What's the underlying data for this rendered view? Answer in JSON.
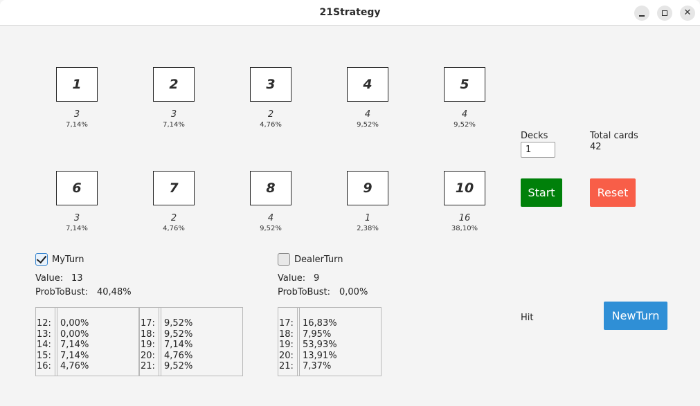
{
  "window": {
    "title": "21Strategy",
    "controls": {
      "minimize": "minimize-icon",
      "maximize": "maximize-icon",
      "close": "close-icon"
    }
  },
  "cards": [
    {
      "label": "1",
      "count": "3",
      "pct": "7,14%"
    },
    {
      "label": "2",
      "count": "3",
      "pct": "7,14%"
    },
    {
      "label": "3",
      "count": "2",
      "pct": "4,76%"
    },
    {
      "label": "4",
      "count": "4",
      "pct": "9,52%"
    },
    {
      "label": "5",
      "count": "4",
      "pct": "9,52%"
    },
    {
      "label": "6",
      "count": "3",
      "pct": "7,14%"
    },
    {
      "label": "7",
      "count": "2",
      "pct": "4,76%"
    },
    {
      "label": "8",
      "count": "4",
      "pct": "9,52%"
    },
    {
      "label": "9",
      "count": "1",
      "pct": "2,38%"
    },
    {
      "label": "10",
      "count": "16",
      "pct": "38,10%"
    }
  ],
  "decks": {
    "label": "Decks",
    "value": "1"
  },
  "total_cards": {
    "label": "Total cards",
    "value": "42"
  },
  "buttons": {
    "start": "Start",
    "reset": "Reset",
    "new_turn": "NewTurn"
  },
  "colors": {
    "start": "#00800a",
    "reset": "#f85e48",
    "new_turn": "#2f8fd6"
  },
  "my_turn": {
    "checkbox_label": "MyTurn",
    "checked": true,
    "value_label": "Value:",
    "value": "13",
    "prob_label": "ProbToBust:",
    "prob": "40,48%",
    "table1_keys": "12:\n13:\n14:\n15:\n16:",
    "table1_vals": "0,00%\n0,00%\n7,14%\n7,14%\n4,76%",
    "table2_keys": "17:\n18:\n19:\n20:\n21:",
    "table2_vals": "9,52%\n9,52%\n7,14%\n4,76%\n9,52%"
  },
  "dealer_turn": {
    "checkbox_label": "DealerTurn",
    "checked": false,
    "value_label": "Value:",
    "value": "9",
    "prob_label": "ProbToBust:",
    "prob": "0,00%",
    "table_keys": "17:\n18:\n19:\n20:\n21:",
    "table_vals": "16,83%\n7,95%\n53,93%\n13,91%\n7,37%"
  },
  "hint": "Hit"
}
